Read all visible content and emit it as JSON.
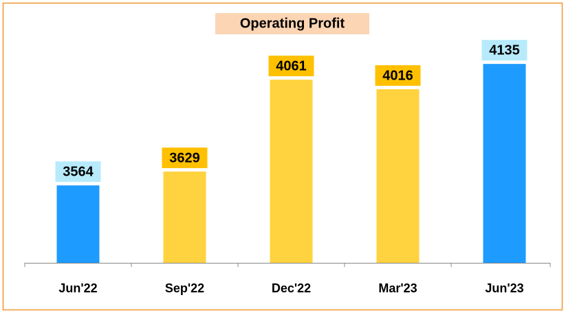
{
  "chart_data": {
    "type": "bar",
    "title": "Operating Profit",
    "categories": [
      "Jun'22",
      "Sep'22",
      "Dec'22",
      "Mar'23",
      "Jun'23"
    ],
    "values": [
      3564,
      3629,
      4061,
      4016,
      4135
    ],
    "colors": [
      "#1e9bff",
      "#ffd23f",
      "#ffd23f",
      "#ffd23f",
      "#1e9bff"
    ],
    "label_colors": [
      "#b7ebfb",
      "#ffc000",
      "#ffc000",
      "#ffc000",
      "#b7ebfb"
    ],
    "ylim": [
      3200,
      4300
    ]
  }
}
